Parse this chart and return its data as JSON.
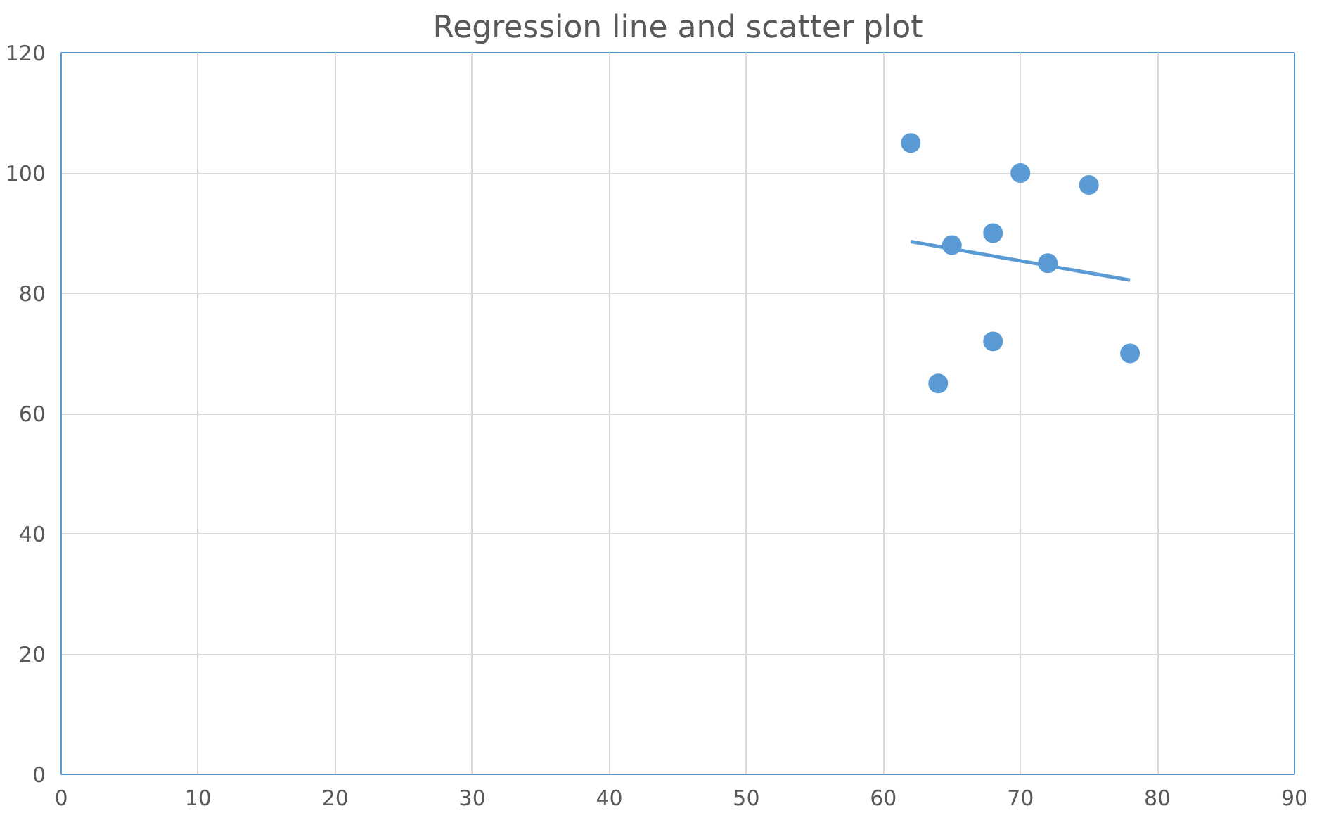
{
  "chart_data": {
    "type": "scatter",
    "title": "Regression line and scatter plot",
    "xlim": [
      0,
      90
    ],
    "ylim": [
      0,
      120
    ],
    "xticks": [
      0,
      10,
      20,
      30,
      40,
      50,
      60,
      70,
      80,
      90
    ],
    "yticks": [
      0,
      20,
      40,
      60,
      80,
      100,
      120
    ],
    "grid": true,
    "series": [
      {
        "marker": "circle",
        "color": "#5b9bd5",
        "x": [
          62,
          70,
          75,
          65,
          68,
          72,
          68,
          64,
          78
        ],
        "values": [
          105,
          100,
          98,
          88,
          90,
          85,
          72,
          65,
          70
        ]
      },
      {
        "type": "line",
        "color": "#5b9bd5",
        "x": [
          62,
          78
        ],
        "values": [
          88.6,
          82.2
        ]
      }
    ]
  }
}
